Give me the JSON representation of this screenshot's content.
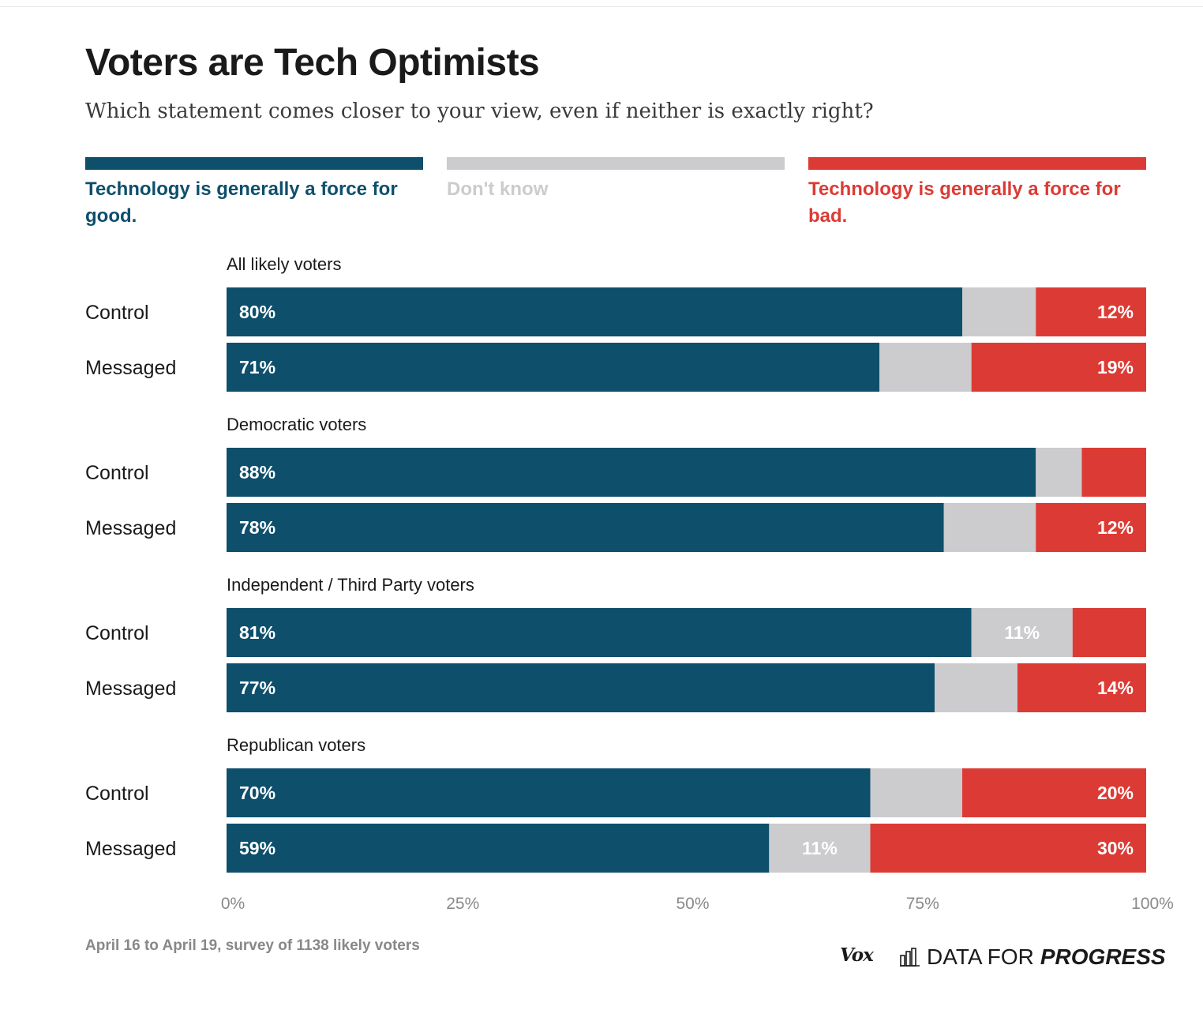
{
  "title": "Voters are Tech Optimists",
  "subtitle": "Which statement comes closer to your view, even if neither is exactly right?",
  "legend": [
    {
      "label": "Technology is generally a force for good.",
      "color": "#0e4f6c"
    },
    {
      "label": "Don't know",
      "color": "#cccbcd"
    },
    {
      "label": "Technology is generally a force for bad.",
      "color": "#dc3b35"
    }
  ],
  "footer": {
    "note": "April 16 to April 19, survey of 1138 likely voters",
    "vox_logo": "Vox",
    "dfp_logo_plain": "DATA FOR",
    "dfp_logo_strong": "PROGRESS",
    "dfp_icon": "bar-chart-icon"
  },
  "chart_data": {
    "type": "bar",
    "orientation": "horizontal",
    "stacked": true,
    "xlim": [
      0,
      100
    ],
    "x_ticks": [
      "0%",
      "25%",
      "50%",
      "75%",
      "100%"
    ],
    "series": [
      {
        "name": "Technology is generally a force for good.",
        "color": "#0e4f6c"
      },
      {
        "name": "Don't know",
        "color": "#cccbcd"
      },
      {
        "name": "Technology is generally a force for bad.",
        "color": "#dc3b35"
      }
    ],
    "groups": [
      {
        "label": "All likely voters",
        "rows": [
          {
            "label": "Control",
            "values": [
              80,
              8,
              12
            ],
            "labels": [
              "80%",
              "",
              "12%"
            ]
          },
          {
            "label": "Messaged",
            "values": [
              71,
              10,
              19
            ],
            "labels": [
              "71%",
              "",
              "19%"
            ]
          }
        ]
      },
      {
        "label": "Democratic voters",
        "rows": [
          {
            "label": "Control",
            "values": [
              88,
              5,
              7
            ],
            "labels": [
              "88%",
              "",
              ""
            ]
          },
          {
            "label": "Messaged",
            "values": [
              78,
              10,
              12
            ],
            "labels": [
              "78%",
              "",
              "12%"
            ]
          }
        ]
      },
      {
        "label": "Independent / Third Party voters",
        "rows": [
          {
            "label": "Control",
            "values": [
              81,
              11,
              8
            ],
            "labels": [
              "81%",
              "11%",
              ""
            ]
          },
          {
            "label": "Messaged",
            "values": [
              77,
              9,
              14
            ],
            "labels": [
              "77%",
              "",
              "14%"
            ]
          }
        ]
      },
      {
        "label": "Republican voters",
        "rows": [
          {
            "label": "Control",
            "values": [
              70,
              10,
              20
            ],
            "labels": [
              "70%",
              "",
              "20%"
            ]
          },
          {
            "label": "Messaged",
            "values": [
              59,
              11,
              30
            ],
            "labels": [
              "59%",
              "11%",
              "30%"
            ]
          }
        ]
      }
    ]
  }
}
